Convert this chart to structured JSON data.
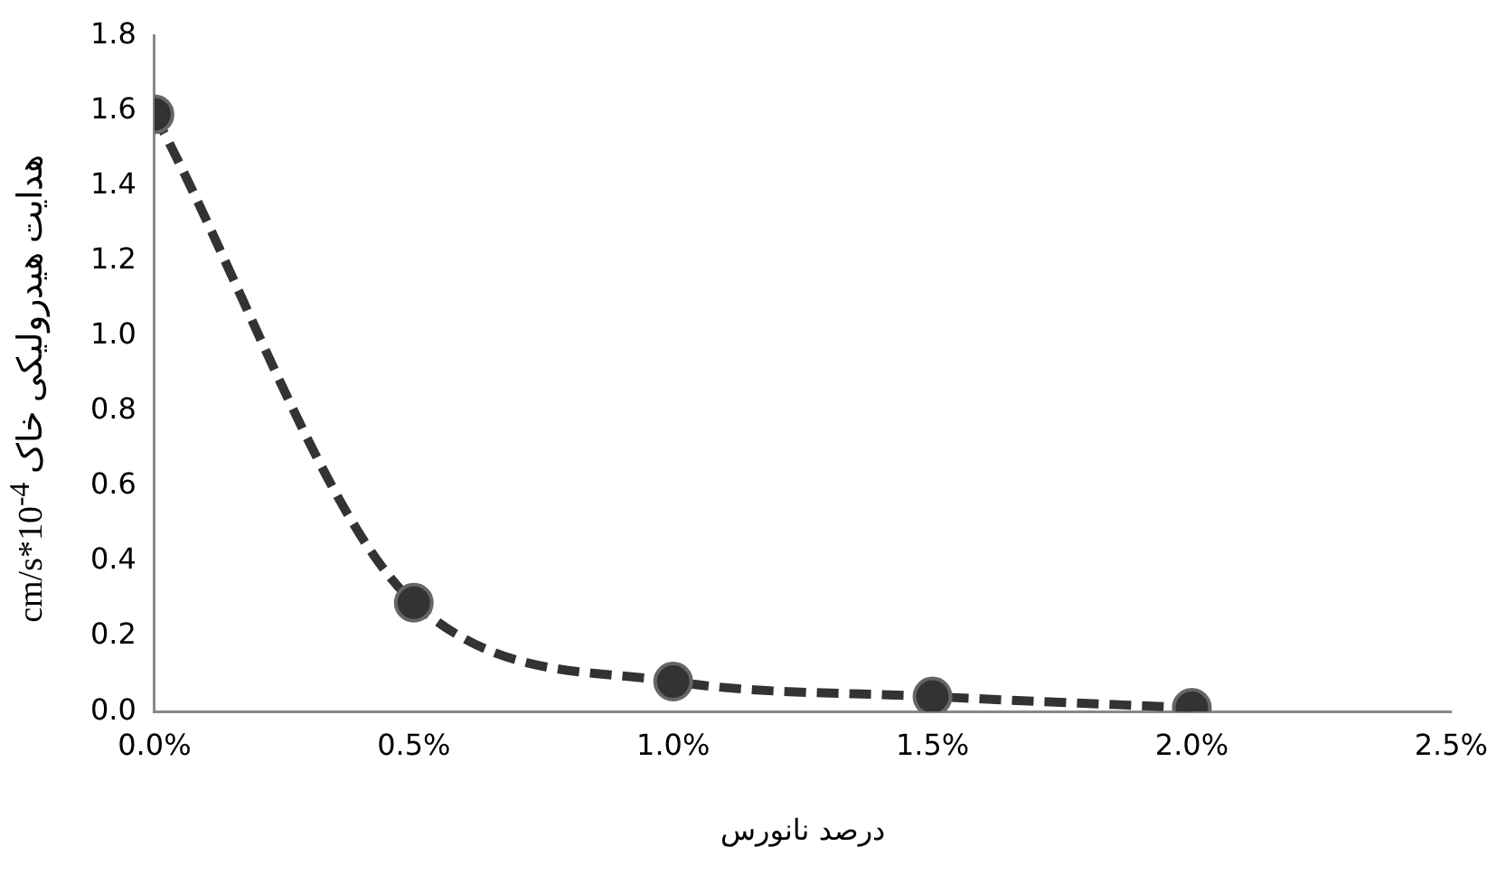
{
  "chart_data": {
    "type": "line",
    "xlabel": "درصد نانورس",
    "ylabel": "هدایت هیدرولیکی خاک cm/s*10$^{-4}$",
    "x": [
      0,
      0.5,
      1,
      1.5,
      2
    ],
    "series": [
      {
        "color": "#333333",
        "values": [
          1.59,
          0.29,
          0.08,
          0.04,
          0.01
        ]
      }
    ],
    "xlim": [
      0,
      2.5
    ],
    "xticks": [
      {
        "value": 0,
        "label": "0.0%"
      },
      {
        "value": 0.5,
        "label": "0.5%"
      },
      {
        "value": 1,
        "label": "1.0%"
      },
      {
        "value": 1.5,
        "label": "1.5%"
      },
      {
        "value": 2,
        "label": "2.0%"
      },
      {
        "value": 2.5,
        "label": "2.5%"
      }
    ],
    "ylim": [
      0,
      1.8
    ],
    "yticks": [
      {
        "value": 0,
        "label": "0.0"
      },
      {
        "value": 0.2,
        "label": "0.2"
      },
      {
        "value": 0.4,
        "label": "0.4"
      },
      {
        "value": 0.6,
        "label": "0.6"
      },
      {
        "value": 0.8,
        "label": "0.8"
      },
      {
        "value": 1,
        "label": "1.0"
      },
      {
        "value": 1.2,
        "label": "1.2"
      },
      {
        "value": 1.4,
        "label": "1.4"
      },
      {
        "value": 1.6,
        "label": "1.6"
      },
      {
        "value": 1.8,
        "label": "1.8"
      }
    ],
    "grid": false,
    "legend": false,
    "marker": "circle",
    "line_style": "dashed"
  }
}
